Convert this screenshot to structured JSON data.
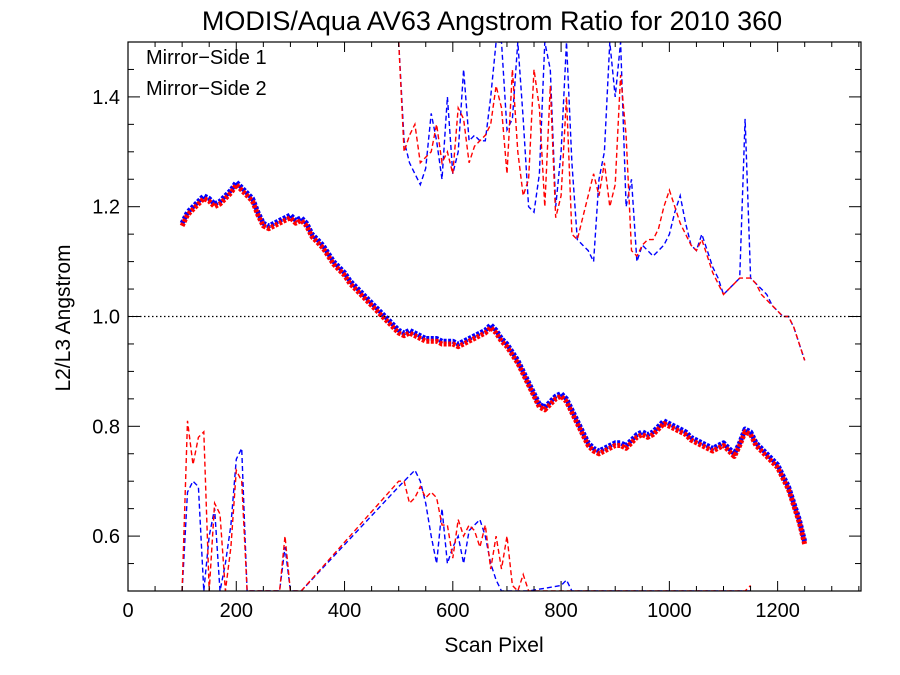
{
  "chart_data": {
    "type": "line",
    "title": "MODIS/Aqua AV63 Angstrom Ratio for 2010 360",
    "xlabel": "Scan Pixel",
    "ylabel": "L2/L3 Angstrom",
    "xlim": [
      0,
      1354
    ],
    "ylim": [
      0.5,
      1.5
    ],
    "x_ticks": [
      0,
      200,
      400,
      600,
      800,
      1000,
      1200
    ],
    "x_tick_labels": [
      "0",
      "200",
      "400",
      "600",
      "800",
      "1000",
      "1200"
    ],
    "y_ticks": [
      0.6,
      0.8,
      1.0,
      1.2,
      1.4
    ],
    "y_tick_labels": [
      "0.6",
      "0.8",
      "1.0",
      "1.2",
      "1.4"
    ],
    "reference_line": {
      "y": 1.0,
      "style": "dotted"
    },
    "legend_position": "top-left",
    "grid": false,
    "series": [
      {
        "name": "Mirror−Side 1",
        "color": "#0000ff",
        "smooth_x": [
          100,
          110,
          120,
          130,
          140,
          150,
          160,
          170,
          180,
          190,
          200,
          210,
          220,
          230,
          240,
          250,
          260,
          270,
          280,
          290,
          300,
          310,
          320,
          330,
          340,
          350,
          360,
          370,
          380,
          390,
          400,
          410,
          420,
          430,
          440,
          450,
          460,
          470,
          480,
          490,
          500,
          510,
          520,
          530,
          540,
          550,
          560,
          570,
          580,
          590,
          600,
          610,
          620,
          630,
          640,
          650,
          660,
          670,
          680,
          690,
          700,
          710,
          720,
          730,
          740,
          750,
          760,
          770,
          780,
          790,
          800,
          810,
          820,
          830,
          840,
          850,
          860,
          870,
          880,
          890,
          900,
          910,
          920,
          930,
          940,
          950,
          960,
          970,
          980,
          990,
          1000,
          1010,
          1020,
          1030,
          1040,
          1050,
          1060,
          1070,
          1080,
          1090,
          1100,
          1110,
          1120,
          1130,
          1140,
          1150,
          1160,
          1170,
          1180,
          1190,
          1200,
          1210,
          1220,
          1230,
          1240,
          1250
        ],
        "smooth_y": [
          1.17,
          1.19,
          1.2,
          1.21,
          1.22,
          1.215,
          1.205,
          1.21,
          1.22,
          1.23,
          1.245,
          1.235,
          1.225,
          1.215,
          1.19,
          1.17,
          1.165,
          1.17,
          1.175,
          1.18,
          1.185,
          1.175,
          1.18,
          1.17,
          1.15,
          1.14,
          1.13,
          1.115,
          1.1,
          1.09,
          1.08,
          1.065,
          1.055,
          1.045,
          1.035,
          1.025,
          1.015,
          1.005,
          0.995,
          0.985,
          0.975,
          0.97,
          0.975,
          0.97,
          0.965,
          0.96,
          0.96,
          0.96,
          0.955,
          0.955,
          0.955,
          0.95,
          0.955,
          0.96,
          0.965,
          0.97,
          0.975,
          0.985,
          0.975,
          0.96,
          0.95,
          0.935,
          0.92,
          0.9,
          0.88,
          0.86,
          0.84,
          0.835,
          0.845,
          0.855,
          0.86,
          0.85,
          0.83,
          0.81,
          0.79,
          0.77,
          0.76,
          0.755,
          0.76,
          0.765,
          0.77,
          0.77,
          0.765,
          0.775,
          0.785,
          0.79,
          0.785,
          0.79,
          0.8,
          0.81,
          0.805,
          0.8,
          0.795,
          0.79,
          0.78,
          0.775,
          0.77,
          0.765,
          0.76,
          0.765,
          0.77,
          0.76,
          0.75,
          0.77,
          0.795,
          0.79,
          0.77,
          0.76,
          0.75,
          0.74,
          0.73,
          0.71,
          0.69,
          0.66,
          0.63,
          0.59
        ],
        "noisy_upper_x": [
          500,
          510,
          520,
          530,
          540,
          550,
          560,
          570,
          580,
          590,
          600,
          610,
          620,
          630,
          640,
          650,
          660,
          670,
          680,
          690,
          700,
          710,
          720,
          730,
          740,
          750,
          760,
          770,
          780,
          790,
          800,
          810,
          820,
          830,
          840,
          850,
          860,
          870,
          880,
          890,
          900,
          910,
          920,
          930,
          940,
          950,
          960,
          970,
          980,
          990,
          1000,
          1010,
          1020,
          1030,
          1040,
          1050,
          1060,
          1070,
          1080,
          1090,
          1100,
          1110,
          1120,
          1130,
          1140,
          1150,
          1160,
          1170,
          1180,
          1190,
          1200,
          1210,
          1220,
          1230,
          1240,
          1250
        ],
        "noisy_upper_y": [
          1.5,
          1.32,
          1.28,
          1.26,
          1.24,
          1.27,
          1.37,
          1.32,
          1.25,
          1.4,
          1.26,
          1.3,
          1.45,
          1.32,
          1.33,
          1.32,
          1.32,
          1.4,
          1.5,
          1.5,
          1.34,
          1.36,
          1.5,
          1.36,
          1.2,
          1.19,
          1.26,
          1.5,
          1.45,
          1.2,
          1.3,
          1.5,
          1.28,
          1.14,
          1.13,
          1.12,
          1.1,
          1.25,
          1.3,
          1.5,
          1.4,
          1.5,
          1.2,
          1.25,
          1.1,
          1.13,
          1.12,
          1.11,
          1.12,
          1.13,
          1.15,
          1.19,
          1.22,
          1.17,
          1.13,
          1.12,
          1.15,
          1.12,
          1.09,
          1.07,
          1.04,
          1.05,
          1.06,
          1.07,
          1.36,
          1.07,
          1.06,
          1.05,
          1.04,
          1.02,
          1.01,
          1.0,
          1.0,
          0.98,
          0.95,
          0.92
        ],
        "noisy_lower_x": [
          100,
          110,
          120,
          130,
          140,
          150,
          160,
          170,
          180,
          190,
          200,
          210,
          220,
          230,
          240,
          250,
          260,
          270,
          280,
          290,
          300,
          310,
          320,
          500,
          510,
          520,
          530,
          540,
          550,
          560,
          570,
          580,
          590,
          600,
          610,
          620,
          630,
          640,
          650,
          660,
          670,
          680,
          690,
          700,
          710,
          720,
          730,
          740,
          800,
          810,
          820,
          1140,
          1150
        ],
        "noisy_lower_y": [
          0.5,
          0.68,
          0.7,
          0.69,
          0.5,
          0.6,
          0.65,
          0.5,
          0.55,
          0.62,
          0.74,
          0.76,
          0.5,
          0.5,
          0.5,
          0.5,
          0.5,
          0.5,
          0.5,
          0.58,
          0.5,
          0.5,
          0.5,
          0.69,
          0.7,
          0.71,
          0.72,
          0.7,
          0.66,
          0.6,
          0.55,
          0.65,
          0.55,
          0.58,
          0.6,
          0.55,
          0.61,
          0.62,
          0.63,
          0.6,
          0.55,
          0.52,
          0.5,
          0.5,
          0.5,
          0.5,
          0.5,
          0.5,
          0.51,
          0.52,
          0.5,
          0.5,
          0.5
        ]
      },
      {
        "name": "Mirror−Side 2",
        "color": "#ff0000",
        "smooth_x": [
          100,
          110,
          120,
          130,
          140,
          150,
          160,
          170,
          180,
          190,
          200,
          210,
          220,
          230,
          240,
          250,
          260,
          270,
          280,
          290,
          300,
          310,
          320,
          330,
          340,
          350,
          360,
          370,
          380,
          390,
          400,
          410,
          420,
          430,
          440,
          450,
          460,
          470,
          480,
          490,
          500,
          510,
          520,
          530,
          540,
          550,
          560,
          570,
          580,
          590,
          600,
          610,
          620,
          630,
          640,
          650,
          660,
          670,
          680,
          690,
          700,
          710,
          720,
          730,
          740,
          750,
          760,
          770,
          780,
          790,
          800,
          810,
          820,
          830,
          840,
          850,
          860,
          870,
          880,
          890,
          900,
          910,
          920,
          930,
          940,
          950,
          960,
          970,
          980,
          990,
          1000,
          1010,
          1020,
          1030,
          1040,
          1050,
          1060,
          1070,
          1080,
          1090,
          1100,
          1110,
          1120,
          1130,
          1140,
          1150,
          1160,
          1170,
          1180,
          1190,
          1200,
          1210,
          1220,
          1230,
          1240,
          1250
        ],
        "smooth_y": [
          1.165,
          1.185,
          1.195,
          1.205,
          1.215,
          1.21,
          1.2,
          1.205,
          1.215,
          1.225,
          1.24,
          1.23,
          1.22,
          1.21,
          1.185,
          1.165,
          1.16,
          1.165,
          1.17,
          1.175,
          1.18,
          1.17,
          1.175,
          1.165,
          1.145,
          1.135,
          1.125,
          1.11,
          1.095,
          1.085,
          1.075,
          1.06,
          1.05,
          1.04,
          1.03,
          1.02,
          1.01,
          1.0,
          0.99,
          0.98,
          0.97,
          0.965,
          0.97,
          0.965,
          0.96,
          0.955,
          0.955,
          0.955,
          0.95,
          0.95,
          0.95,
          0.945,
          0.95,
          0.955,
          0.96,
          0.965,
          0.97,
          0.98,
          0.97,
          0.955,
          0.945,
          0.93,
          0.915,
          0.895,
          0.875,
          0.855,
          0.835,
          0.83,
          0.84,
          0.85,
          0.855,
          0.845,
          0.825,
          0.805,
          0.785,
          0.765,
          0.755,
          0.75,
          0.755,
          0.76,
          0.765,
          0.765,
          0.76,
          0.77,
          0.78,
          0.785,
          0.78,
          0.785,
          0.795,
          0.805,
          0.8,
          0.795,
          0.79,
          0.785,
          0.775,
          0.77,
          0.765,
          0.76,
          0.755,
          0.76,
          0.765,
          0.755,
          0.745,
          0.765,
          0.79,
          0.785,
          0.765,
          0.755,
          0.745,
          0.735,
          0.725,
          0.705,
          0.685,
          0.655,
          0.625,
          0.585
        ],
        "noisy_upper_x": [
          500,
          510,
          520,
          530,
          540,
          550,
          560,
          570,
          580,
          590,
          600,
          610,
          620,
          630,
          640,
          650,
          660,
          670,
          680,
          690,
          700,
          710,
          720,
          730,
          740,
          750,
          760,
          770,
          780,
          790,
          800,
          810,
          820,
          830,
          840,
          850,
          860,
          870,
          880,
          890,
          900,
          910,
          920,
          930,
          940,
          950,
          960,
          970,
          980,
          990,
          1000,
          1010,
          1020,
          1030,
          1040,
          1050,
          1060,
          1070,
          1080,
          1090,
          1100,
          1110,
          1120,
          1130,
          1140,
          1150,
          1160,
          1170,
          1180,
          1190,
          1200,
          1210,
          1220,
          1230,
          1240,
          1250
        ],
        "noisy_upper_y": [
          1.5,
          1.3,
          1.33,
          1.35,
          1.28,
          1.29,
          1.3,
          1.35,
          1.28,
          1.3,
          1.26,
          1.38,
          1.36,
          1.28,
          1.31,
          1.32,
          1.33,
          1.35,
          1.42,
          1.38,
          1.26,
          1.45,
          1.3,
          1.22,
          1.25,
          1.45,
          1.38,
          1.2,
          1.42,
          1.18,
          1.22,
          1.4,
          1.15,
          1.14,
          1.18,
          1.22,
          1.26,
          1.22,
          1.28,
          1.2,
          1.24,
          1.44,
          1.33,
          1.12,
          1.11,
          1.13,
          1.14,
          1.14,
          1.16,
          1.2,
          1.23,
          1.2,
          1.17,
          1.15,
          1.13,
          1.12,
          1.14,
          1.11,
          1.08,
          1.06,
          1.04,
          1.05,
          1.06,
          1.07,
          1.07,
          1.07,
          1.06,
          1.04,
          1.03,
          1.02,
          1.01,
          1.0,
          1.0,
          0.98,
          0.95,
          0.92
        ],
        "noisy_lower_x": [
          100,
          110,
          120,
          130,
          140,
          150,
          160,
          170,
          180,
          190,
          200,
          210,
          220,
          230,
          240,
          250,
          260,
          270,
          280,
          290,
          300,
          310,
          320,
          500,
          510,
          520,
          530,
          540,
          550,
          560,
          570,
          580,
          590,
          600,
          610,
          620,
          630,
          640,
          650,
          660,
          670,
          680,
          690,
          700,
          710,
          720,
          730,
          740,
          800,
          810,
          820,
          1140,
          1150
        ],
        "noisy_lower_y": [
          0.5,
          0.81,
          0.73,
          0.78,
          0.79,
          0.5,
          0.66,
          0.64,
          0.5,
          0.58,
          0.72,
          0.7,
          0.5,
          0.5,
          0.5,
          0.5,
          0.5,
          0.5,
          0.5,
          0.6,
          0.5,
          0.5,
          0.5,
          0.7,
          0.7,
          0.66,
          0.67,
          0.69,
          0.67,
          0.68,
          0.67,
          0.62,
          0.62,
          0.56,
          0.63,
          0.6,
          0.62,
          0.61,
          0.58,
          0.62,
          0.54,
          0.6,
          0.54,
          0.6,
          0.51,
          0.5,
          0.53,
          0.5,
          0.5,
          0.5,
          0.5,
          0.5,
          0.51
        ]
      }
    ]
  }
}
